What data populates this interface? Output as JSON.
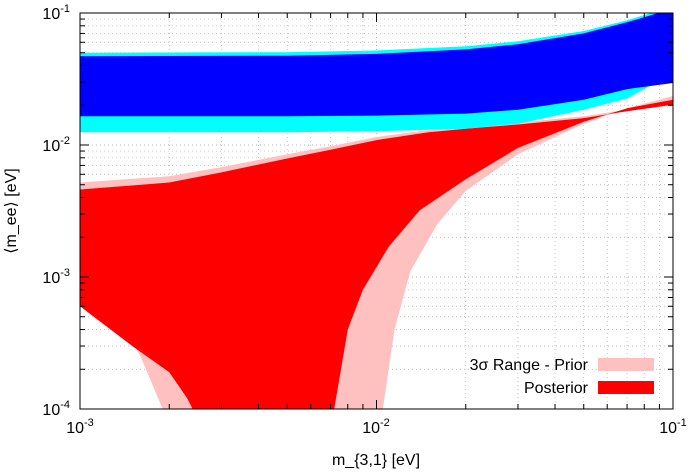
{
  "chart_data": {
    "type": "area",
    "x_scale": "log",
    "y_scale": "log",
    "xlim": [
      0.001,
      0.1
    ],
    "ylim": [
      0.0001,
      0.1
    ],
    "xlabel": "m_{3,1} [eV]",
    "ylabel": "⟨m_ee⟩ [eV]",
    "grid": true,
    "legend_position": "bottom-right",
    "x_ticks": [
      {
        "value": 0.001,
        "base": "10",
        "exp": "-3"
      },
      {
        "value": 0.01,
        "base": "10",
        "exp": "-2"
      },
      {
        "value": 0.1,
        "base": "10",
        "exp": "-1"
      }
    ],
    "y_ticks": [
      {
        "value": 0.0001,
        "base": "10",
        "exp": "-4"
      },
      {
        "value": 0.001,
        "base": "10",
        "exp": "-3"
      },
      {
        "value": 0.01,
        "base": "10",
        "exp": "-2"
      },
      {
        "value": 0.1,
        "base": "10",
        "exp": "-1"
      }
    ],
    "series": [
      {
        "name": "3σ Range - Prior",
        "color": "#ffc0c0",
        "upper": {
          "x": [
            0.001,
            0.002,
            0.003,
            0.005,
            0.007,
            0.01,
            0.015,
            0.02,
            0.03,
            0.05,
            0.07,
            0.1
          ],
          "y": [
            0.0052,
            0.0058,
            0.0068,
            0.0085,
            0.0098,
            0.0115,
            0.013,
            0.0138,
            0.0148,
            0.0165,
            0.0185,
            0.0208
          ]
        },
        "lower_left": {
          "x": [
            0.001,
            0.0013,
            0.0016,
            0.0019
          ],
          "y": [
            0.00095,
            0.0006,
            0.00025,
            0.0001
          ]
        },
        "lower_right": {
          "x": [
            0.0105,
            0.0115,
            0.013,
            0.016,
            0.02,
            0.03,
            0.05,
            0.07,
            0.1
          ],
          "y": [
            0.0001,
            0.0004,
            0.0011,
            0.0025,
            0.0045,
            0.0085,
            0.0145,
            0.019,
            0.0235
          ]
        }
      },
      {
        "name": "Posterior",
        "color": "#ff0000",
        "upper": {
          "x": [
            0.001,
            0.002,
            0.003,
            0.005,
            0.007,
            0.01,
            0.015,
            0.02,
            0.03,
            0.05,
            0.07,
            0.1
          ],
          "y": [
            0.0046,
            0.0052,
            0.0062,
            0.0079,
            0.0092,
            0.0109,
            0.0125,
            0.0133,
            0.0143,
            0.016,
            0.018,
            0.0202
          ]
        },
        "lower_left": {
          "x": [
            0.001,
            0.0015,
            0.002,
            0.0023,
            0.0024
          ],
          "y": [
            0.0006,
            0.0003,
            0.00019,
            0.00012,
            0.0001
          ]
        },
        "lower_right": {
          "x": [
            0.0072,
            0.008,
            0.009,
            0.011,
            0.014,
            0.02,
            0.03,
            0.05,
            0.07,
            0.1
          ],
          "y": [
            0.0001,
            0.0004,
            0.0008,
            0.0017,
            0.0032,
            0.0055,
            0.0095,
            0.015,
            0.019,
            0.022
          ]
        }
      },
      {
        "color": "#00ffff",
        "upper": {
          "x": [
            0.001,
            0.005,
            0.01,
            0.02,
            0.03,
            0.05,
            0.07,
            0.1
          ],
          "y": [
            0.05,
            0.0505,
            0.052,
            0.056,
            0.061,
            0.073,
            0.088,
            0.112
          ]
        },
        "lower": {
          "x": [
            0.001,
            0.005,
            0.01,
            0.02,
            0.03,
            0.05,
            0.07,
            0.1
          ],
          "y": [
            0.0125,
            0.0125,
            0.0127,
            0.0133,
            0.0145,
            0.0185,
            0.0225,
            0.035
          ]
        }
      },
      {
        "color": "#0000ff",
        "upper": {
          "x": [
            0.001,
            0.005,
            0.01,
            0.02,
            0.03,
            0.05,
            0.07,
            0.1
          ],
          "y": [
            0.047,
            0.0475,
            0.049,
            0.053,
            0.058,
            0.07,
            0.085,
            0.108
          ]
        },
        "lower": {
          "x": [
            0.001,
            0.005,
            0.01,
            0.02,
            0.03,
            0.05,
            0.07,
            0.1
          ],
          "y": [
            0.0165,
            0.0165,
            0.0167,
            0.0173,
            0.0185,
            0.022,
            0.0265,
            0.0295
          ]
        }
      }
    ]
  }
}
